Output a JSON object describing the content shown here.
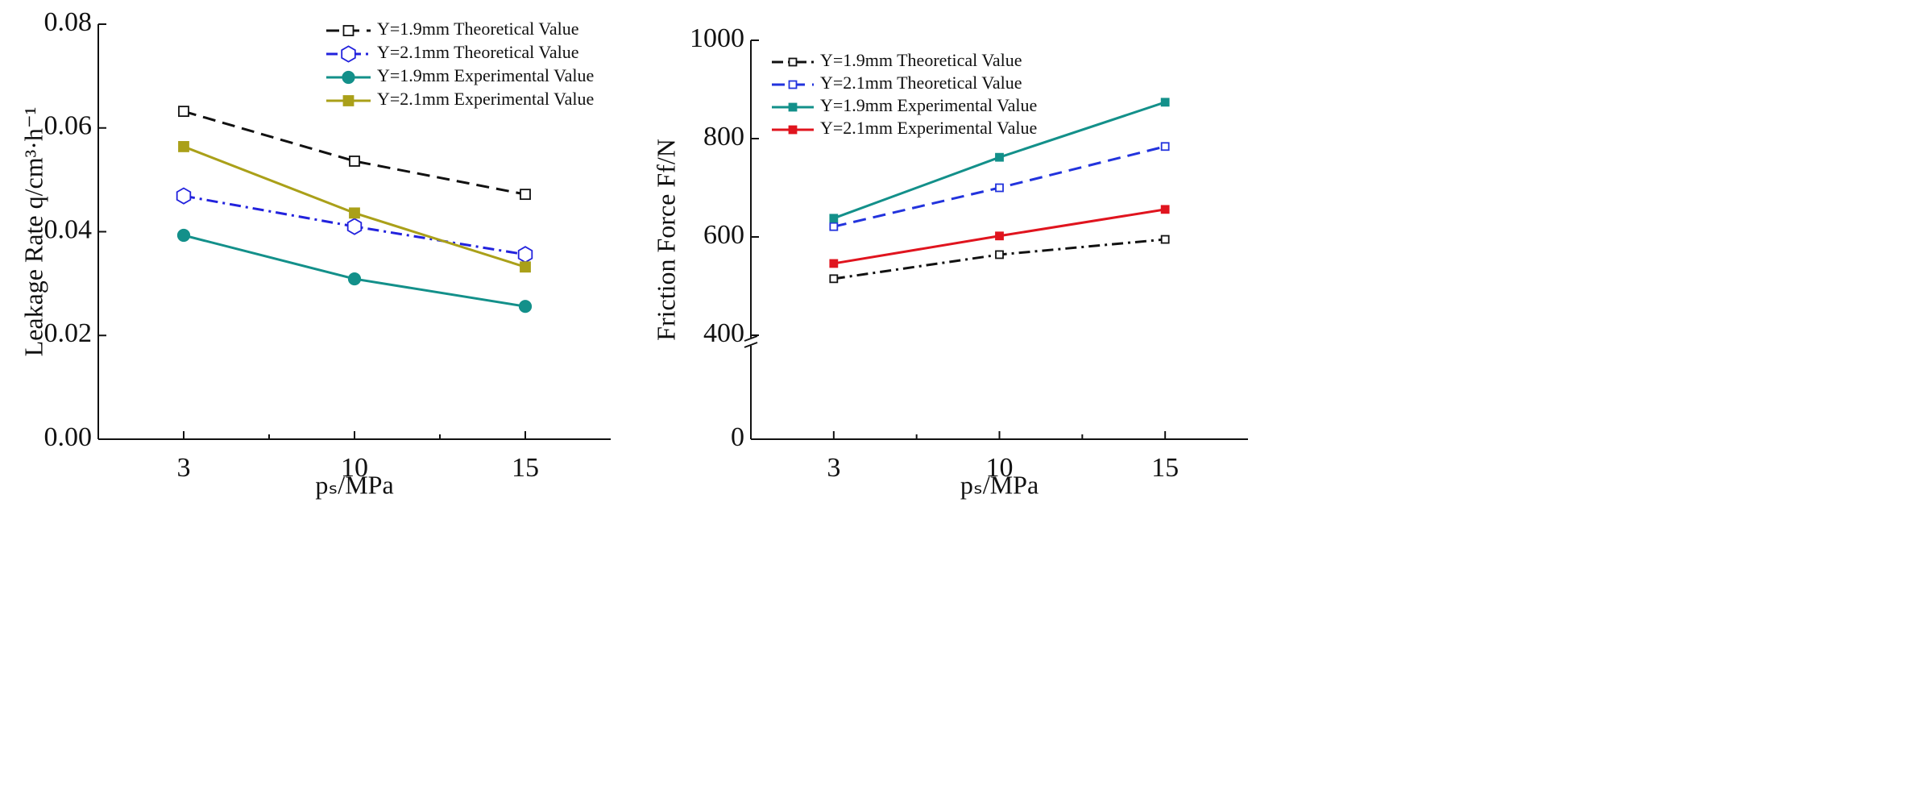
{
  "chart_data": [
    {
      "type": "line",
      "categories": [
        "3",
        "10",
        "15"
      ],
      "xlabel": "pₛ/MPa",
      "ylabel": "Leakage Rate q/cm³·h⁻¹",
      "ylim": [
        0,
        0.08
      ],
      "yticks": [
        {
          "value": 0,
          "label": "0.00"
        },
        0.02,
        0.04,
        0.06,
        0.08
      ],
      "legend": "upper right",
      "series": [
        {
          "name": "Y=1.9mm Theoretical Value",
          "color": "#111111",
          "dash": "dashed",
          "marker": "square",
          "marker_filled": false,
          "values": [
            0.0632,
            0.0536,
            0.0472
          ]
        },
        {
          "name": "Y=2.1mm Theoretical Value",
          "color": "#2222dd",
          "dash": "dashdot",
          "marker": "hexagon",
          "marker_filled": false,
          "values": [
            0.0469,
            0.041,
            0.0356
          ]
        },
        {
          "name": "Y=1.9mm Experimental Value",
          "color": "#13908a",
          "dash": "solid",
          "marker": "circle",
          "marker_filled": true,
          "values": [
            0.0393,
            0.0309,
            0.0256
          ]
        },
        {
          "name": "Y=2.1mm Experimental Value",
          "color": "#aaa019",
          "dash": "solid",
          "marker": "square",
          "marker_filled": true,
          "values": [
            0.0564,
            0.0436,
            0.0332
          ]
        }
      ]
    },
    {
      "type": "line",
      "categories": [
        "3",
        "10",
        "15"
      ],
      "xlabel": "pₛ/MPa",
      "ylabel": "Friction Force Ff/N",
      "ylim": [
        0,
        1000
      ],
      "yticks": [
        0,
        400,
        600,
        800,
        1000
      ],
      "y_break": 400,
      "legend": "upper left",
      "series": [
        {
          "name": "Y=1.9mm Theoretical Value",
          "color": "#111111",
          "dash": "dashdot",
          "marker": "square",
          "marker_filled": false,
          "values": [
            515,
            564,
            595
          ]
        },
        {
          "name": "Y=2.1mm Theoretical Value",
          "color": "#2233dd",
          "dash": "dashed",
          "marker": "square",
          "marker_filled": false,
          "values": [
            621,
            700,
            784
          ]
        },
        {
          "name": "Y=1.9mm Experimental Value",
          "color": "#13908a",
          "dash": "solid",
          "marker": "square",
          "marker_filled": true,
          "values": [
            638,
            762,
            874
          ]
        },
        {
          "name": "Y=2.1mm Experimental Value",
          "color": "#e0141e",
          "dash": "solid",
          "marker": "square",
          "marker_filled": true,
          "values": [
            546,
            602,
            656
          ]
        }
      ]
    }
  ]
}
